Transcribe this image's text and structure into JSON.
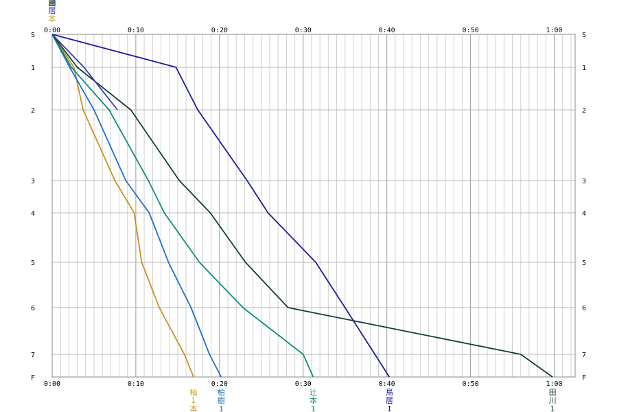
{
  "chart_data": {
    "type": "line",
    "x_unit": "minutes",
    "xlim": [
      0,
      62.5
    ],
    "x_ticks": [
      0,
      10,
      20,
      30,
      40,
      50,
      60
    ],
    "x_tick_labels": [
      "0:00",
      "0:10",
      "0:20",
      "0:30",
      "0:40",
      "0:50",
      "1:00"
    ],
    "y_categories": [
      "S",
      "1",
      "2",
      "3",
      "4",
      "5",
      "6",
      "7",
      "F"
    ],
    "grid": true,
    "series": [
      {
        "name": "杣 1 本",
        "color": "#c8921e",
        "finished": true,
        "points": [
          [
            0,
            "S"
          ],
          [
            2.6,
            "1"
          ],
          [
            3.7,
            "2"
          ],
          [
            7.5,
            "3"
          ],
          [
            9.8,
            "4"
          ],
          [
            10.7,
            "5"
          ],
          [
            12.8,
            "6"
          ],
          [
            15.8,
            "7"
          ],
          [
            16.9,
            "F"
          ]
        ]
      },
      {
        "name": "柏 樹 1",
        "color": "#1e6ec8",
        "finished": true,
        "points": [
          [
            0,
            "S"
          ],
          [
            2.1,
            "1"
          ],
          [
            5.0,
            "2"
          ],
          [
            8.8,
            "3"
          ],
          [
            11.6,
            "4"
          ],
          [
            13.9,
            "5"
          ],
          [
            16.6,
            "6"
          ],
          [
            18.8,
            "7"
          ],
          [
            20.2,
            "F"
          ]
        ]
      },
      {
        "name": "辻 本 1",
        "color": "#0f8c7a",
        "finished": true,
        "points": [
          [
            0,
            "S"
          ],
          [
            2.3,
            "1"
          ],
          [
            6.8,
            "2"
          ],
          [
            11.5,
            "3"
          ],
          [
            13.4,
            "4"
          ],
          [
            17.6,
            "5"
          ],
          [
            22.8,
            "6"
          ],
          [
            30.0,
            "7"
          ],
          [
            31.2,
            "F"
          ]
        ]
      },
      {
        "name": "鳥 居 1",
        "color": "#1a1a9a",
        "finished": true,
        "points": [
          [
            0,
            "S"
          ],
          [
            14.8,
            "1"
          ],
          [
            17.4,
            "2"
          ],
          [
            23.3,
            "3"
          ],
          [
            25.8,
            "4"
          ],
          [
            31.5,
            "5"
          ],
          [
            35.0,
            "6"
          ],
          [
            40.3,
            "F"
          ]
        ]
      },
      {
        "name": "田 川 1",
        "color": "#123c38",
        "finished": true,
        "points": [
          [
            0,
            "S"
          ],
          [
            3.0,
            "1"
          ],
          [
            9.4,
            "2"
          ],
          [
            15.2,
            "3"
          ],
          [
            18.9,
            "4"
          ],
          [
            23.1,
            "5"
          ],
          [
            28.2,
            "6"
          ],
          [
            56.0,
            "7"
          ],
          [
            59.8,
            "F"
          ]
        ]
      },
      {
        "name": "",
        "color": "#3838b8",
        "finished": false,
        "points": [
          [
            0,
            "S"
          ],
          [
            3.8,
            "1"
          ],
          [
            7.8,
            "2"
          ]
        ]
      }
    ],
    "top_labels": [
      "鳥",
      "辻",
      "柏",
      "杣",
      "田",
      "居",
      "本"
    ]
  }
}
